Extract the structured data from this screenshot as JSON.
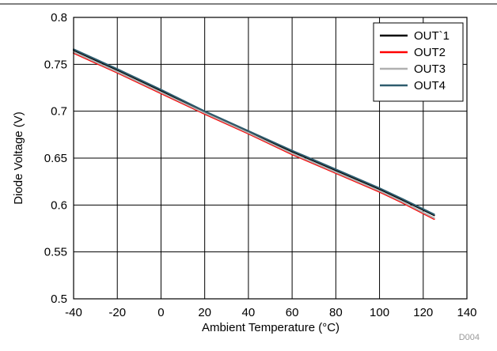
{
  "chart_data": {
    "type": "line",
    "title": "",
    "xlabel": "Ambient Temperature (°C)",
    "ylabel": "Diode Voltage (V)",
    "xlim": [
      -40,
      140
    ],
    "ylim": [
      0.5,
      0.8
    ],
    "x_ticks": [
      -40,
      -20,
      0,
      20,
      40,
      60,
      80,
      100,
      120,
      140
    ],
    "y_ticks": [
      0.5,
      0.55,
      0.6,
      0.65,
      0.7,
      0.75,
      0.8
    ],
    "x_tick_labels": [
      "-40",
      "-20",
      "0",
      "20",
      "40",
      "60",
      "80",
      "100",
      "120",
      "140"
    ],
    "y_tick_labels": [
      "0.5",
      "0.55",
      "0.6",
      "0.65",
      "0.7",
      "0.75",
      "0.8"
    ],
    "grid": true,
    "legend_position": "top-right",
    "x": [
      -40,
      -20,
      0,
      20,
      40,
      60,
      80,
      100,
      110,
      125
    ],
    "series": [
      {
        "name": "OUT`1",
        "color": "#000000",
        "values": [
          0.765,
          0.744,
          0.722,
          0.699,
          0.678,
          0.657,
          0.637,
          0.617,
          0.606,
          0.589
        ]
      },
      {
        "name": "OUT2",
        "color": "#ff0000",
        "values": [
          0.762,
          0.741,
          0.719,
          0.697,
          0.676,
          0.654,
          0.634,
          0.614,
          0.603,
          0.585
        ]
      },
      {
        "name": "OUT3",
        "color": "#b0b0b0",
        "values": [
          0.763,
          0.742,
          0.72,
          0.698,
          0.677,
          0.655,
          0.635,
          0.615,
          0.604,
          0.586
        ]
      },
      {
        "name": "OUT4",
        "color": "#2e5c6e",
        "values": [
          0.766,
          0.745,
          0.723,
          0.7,
          0.679,
          0.658,
          0.638,
          0.618,
          0.607,
          0.59
        ]
      }
    ],
    "annotation": "D004"
  }
}
